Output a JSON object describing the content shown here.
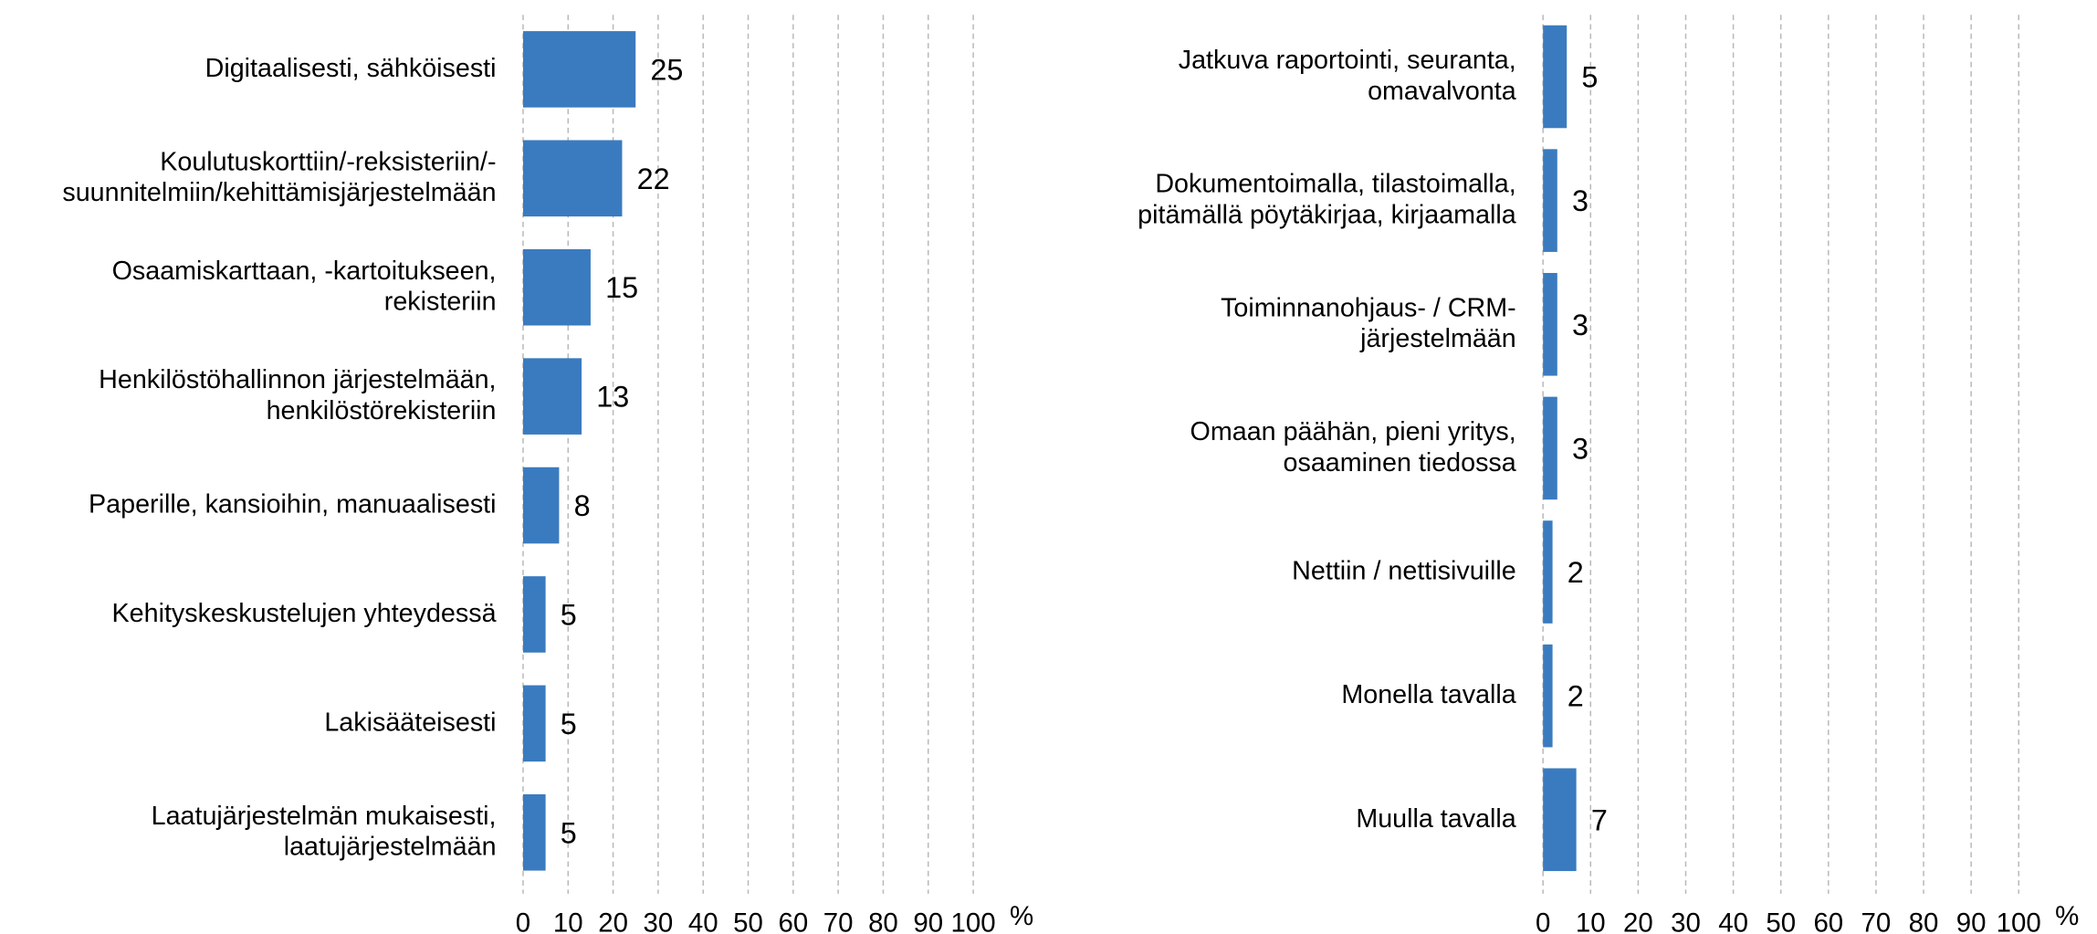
{
  "chart_data": [
    {
      "type": "bar",
      "orientation": "horizontal",
      "categories": [
        [
          "Digitaalisesti, sähköisesti"
        ],
        [
          "Koulutuskorttiin/-reksisteriin/-",
          "suunnitelmiin/kehittämisjärjestelmään"
        ],
        [
          "Osaamiskarttaan, -kartoitukseen,",
          "rekisteriin"
        ],
        [
          "Henkilöstöhallinnon järjestelmään,",
          "henkilöstörekisteriin"
        ],
        [
          "Paperille, kansioihin, manuaalisesti"
        ],
        [
          "Kehityskeskustelujen yhteydessä"
        ],
        [
          "Lakisääteisesti"
        ],
        [
          "Laatujärjestelmän mukaisesti,",
          "laatujärjestelmään"
        ]
      ],
      "values": [
        25,
        22,
        15,
        13,
        8,
        5,
        5,
        5
      ],
      "color": "#3a7bbf",
      "xlim": [
        0,
        100
      ],
      "xticks": [
        0,
        10,
        20,
        30,
        40,
        50,
        60,
        70,
        80,
        90,
        100
      ],
      "xlabel": "%",
      "grid": true
    },
    {
      "type": "bar",
      "orientation": "horizontal",
      "categories": [
        [
          "Jatkuva raportointi, seuranta,",
          "omavalvonta"
        ],
        [
          "Dokumentoimalla, tilastoimalla,",
          "pitämällä pöytäkirjaa, kirjaamalla"
        ],
        [
          "Toiminnanohjaus- / CRM-",
          "järjestelmään"
        ],
        [
          "Omaan päähän, pieni yritys,",
          "osaaminen tiedossa"
        ],
        [
          "Nettiin / nettisivuille"
        ],
        [
          "Monella tavalla"
        ],
        [
          "Muulla tavalla"
        ]
      ],
      "values": [
        5,
        3,
        3,
        3,
        2,
        2,
        7
      ],
      "color": "#3a7bbf",
      "xlim": [
        0,
        100
      ],
      "xticks": [
        0,
        10,
        20,
        30,
        40,
        50,
        60,
        70,
        80,
        90,
        100
      ],
      "xlabel": "%",
      "grid": true
    }
  ]
}
